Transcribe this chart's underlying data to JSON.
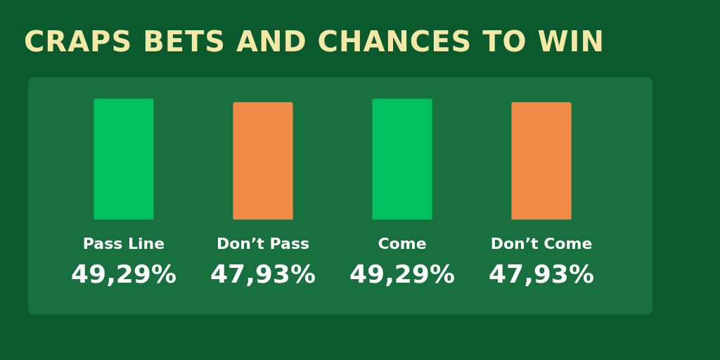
{
  "chart_data": {
    "type": "bar",
    "title": "CRAPS BETS AND CHANCES TO WIN",
    "categories": [
      "Pass Line",
      "Don’t Pass",
      "Come",
      "Don’t Come"
    ],
    "values": [
      49.29,
      47.93,
      49.29,
      47.93
    ],
    "colors": [
      "#00c060",
      "#f08c48",
      "#00c060",
      "#f08c48"
    ],
    "value_labels": [
      "49,29%",
      "47,93%",
      "49,29%",
      "47,93%"
    ],
    "grid": false,
    "legend": false
  }
}
